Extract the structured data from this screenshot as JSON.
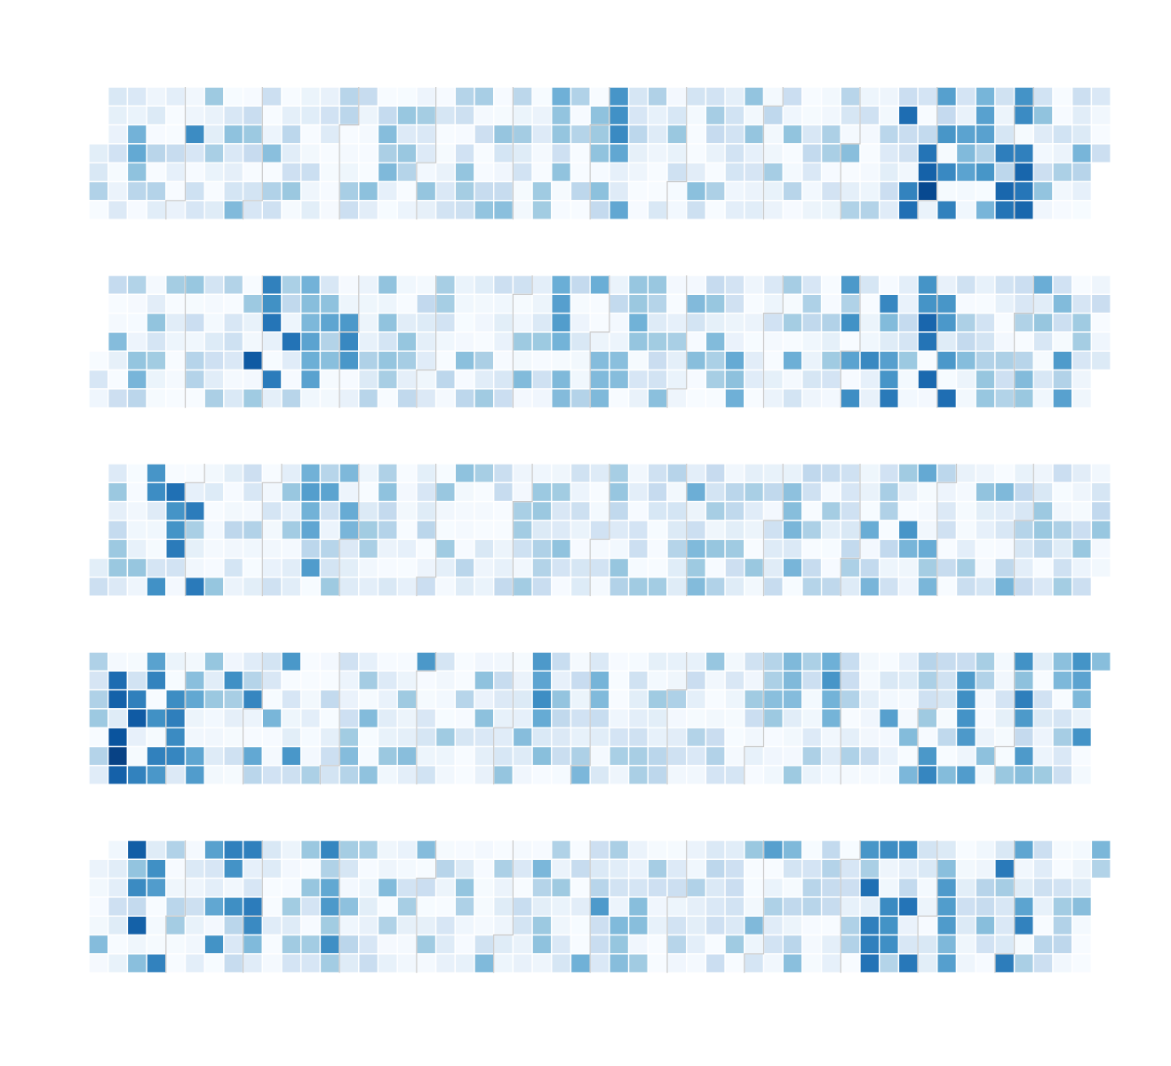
{
  "chart_data": {
    "type": "heatmap",
    "layout": "calendar",
    "title": "",
    "panels": 5,
    "rows_per_panel": 7,
    "weeks_per_panel": 53,
    "colormap": [
      "#f7fbff",
      "#deebf7",
      "#c6dbef",
      "#9ecae1",
      "#6baed6",
      "#4292c6",
      "#2171b5",
      "#08519c",
      "#08306b"
    ],
    "month_border_color": "#c8c8c8",
    "value_range": [
      0,
      1
    ],
    "seeds": [
      11,
      23,
      37,
      41,
      59
    ],
    "intensity": [
      0.45,
      0.45,
      0.42,
      0.46,
      0.47
    ],
    "start_weekday": [
      3,
      4,
      5,
      0,
      1
    ],
    "highlights": [
      [
        [
          2,
          54
        ],
        [
          5,
          75
        ],
        [
          24,
          52
        ],
        [
          26,
          52
        ],
        [
          27,
          66
        ],
        [
          42,
          88
        ],
        [
          43,
          94
        ],
        [
          44,
          75
        ],
        [
          45,
          85
        ],
        [
          46,
          90
        ],
        [
          47,
          86
        ],
        [
          48,
          82
        ],
        [
          46,
          62
        ],
        [
          45,
          55
        ]
      ],
      [
        [
          8,
          95
        ],
        [
          9,
          82
        ],
        [
          10,
          84
        ],
        [
          11,
          56
        ],
        [
          12,
          55
        ],
        [
          13,
          70
        ],
        [
          24,
          58
        ],
        [
          26,
          52
        ],
        [
          33,
          60
        ],
        [
          35,
          60
        ],
        [
          39,
          72
        ],
        [
          40,
          76
        ],
        [
          41,
          75
        ],
        [
          43,
          80
        ],
        [
          44,
          78
        ],
        [
          50,
          60
        ]
      ],
      [
        [
          3,
          72
        ],
        [
          4,
          82
        ],
        [
          5,
          78
        ],
        [
          11,
          62
        ],
        [
          13,
          55
        ],
        [
          31,
          52
        ],
        [
          36,
          54
        ],
        [
          40,
          55
        ],
        [
          42,
          62
        ],
        [
          43,
          55
        ],
        [
          47,
          58
        ]
      ],
      [
        [
          1,
          95
        ],
        [
          2,
          86
        ],
        [
          3,
          72
        ],
        [
          4,
          80
        ],
        [
          5,
          62
        ],
        [
          7,
          72
        ],
        [
          8,
          70
        ],
        [
          10,
          70
        ],
        [
          23,
          66
        ],
        [
          38,
          62
        ],
        [
          39,
          58
        ],
        [
          43,
          70
        ],
        [
          45,
          65
        ],
        [
          48,
          72
        ],
        [
          51,
          72
        ]
      ],
      [
        [
          2,
          85
        ],
        [
          3,
          72
        ],
        [
          6,
          70
        ],
        [
          7,
          75
        ],
        [
          8,
          84
        ],
        [
          12,
          68
        ],
        [
          15,
          55
        ],
        [
          40,
          80
        ],
        [
          41,
          70
        ],
        [
          42,
          76
        ],
        [
          44,
          60
        ],
        [
          47,
          75
        ],
        [
          48,
          70
        ],
        [
          52,
          60
        ]
      ]
    ]
  }
}
